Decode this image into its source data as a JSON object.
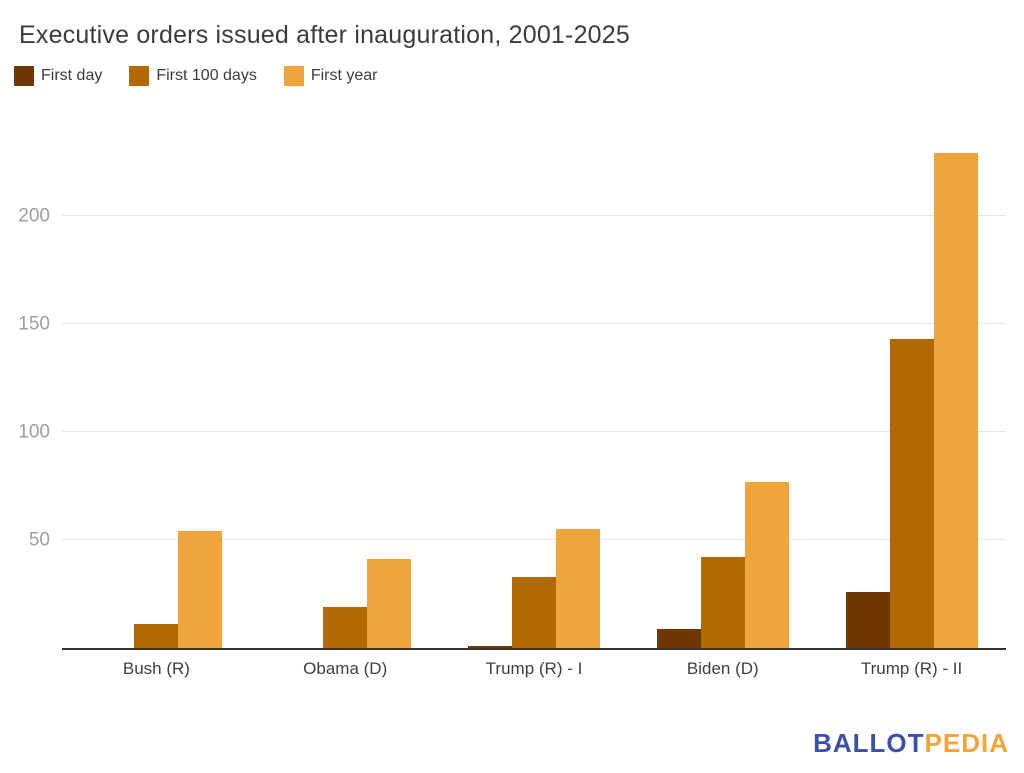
{
  "chart_data": {
    "type": "bar",
    "title": "Executive orders issued after inauguration, 2001-2025",
    "categories": [
      "Bush (R)",
      "Obama (D)",
      "Trump (R) - I",
      "Biden (D)",
      "Trump (R) - II"
    ],
    "series": [
      {
        "name": "First day",
        "color": "#6e3703",
        "values": [
          0,
          0,
          1,
          9,
          26
        ]
      },
      {
        "name": "First 100 days",
        "color": "#b16a01",
        "values": [
          11,
          19,
          33,
          42,
          143
        ]
      },
      {
        "name": "First year",
        "color": "#f0a43c",
        "values": [
          54,
          41,
          55,
          77,
          229
        ]
      }
    ],
    "xlabel": "",
    "ylabel": "",
    "yticks": [
      50,
      100,
      150,
      200
    ],
    "ylim": [
      0,
      250
    ],
    "grid": true,
    "legend_position": "top-left"
  },
  "axis_colors": {
    "gridline": "#e6e6e6",
    "baseline": "#333333",
    "tick_label": "#9e9e9e",
    "category_label": "#3f3f3f"
  },
  "footer": {
    "brand_part1": "BALLOT",
    "brand_part2": "PEDIA",
    "brand_color1": "#3b4fad",
    "brand_color2": "#f5a33b"
  }
}
